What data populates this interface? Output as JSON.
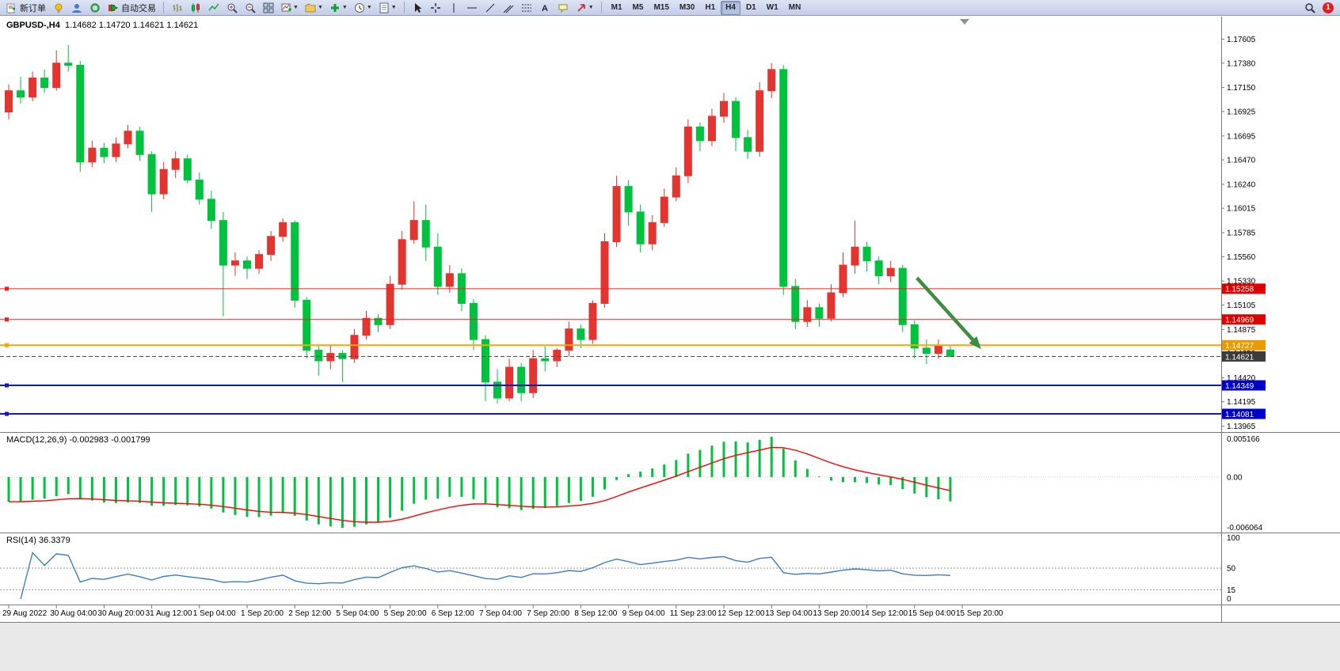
{
  "toolbar": {
    "new_order_label": "新订单",
    "auto_trading_label": "自动交易",
    "timeframes": [
      "M1",
      "M5",
      "M15",
      "M30",
      "H1",
      "H4",
      "D1",
      "W1",
      "MN"
    ],
    "active_timeframe": "H4",
    "notification_badge": "1"
  },
  "chart": {
    "symbol_period": "GBPUSD-,H4",
    "ohlc_text": "1.14682 1.14720 1.14621 1.14621",
    "macd_title": "MACD(12,26,9)",
    "macd_values": "-0.002983 -0.001799",
    "rsi_title": "RSI(14)",
    "rsi_value": "36.3379"
  },
  "chart_data": {
    "type": "candlestick",
    "symbol": "GBPUSD-",
    "timeframe": "H4",
    "bull_color": "#e23530",
    "bear_color": "#00c23e",
    "price_range": {
      "top": 1.1778,
      "bottom": 1.1394
    },
    "price_axis_ticks": [
      "1.17605",
      "1.17380",
      "1.17150",
      "1.16925",
      "1.16695",
      "1.16470",
      "1.16240",
      "1.16015",
      "1.15785",
      "1.15560",
      "1.15330",
      "1.15105",
      "1.14875",
      "1.14650",
      "1.14420",
      "1.14195",
      "1.13965"
    ],
    "time_labels": [
      "29 Aug 2022",
      "30 Aug 04:00",
      "30 Aug 20:00",
      "31 Aug 12:00",
      "1 Sep 04:00",
      "1 Sep 20:00",
      "2 Sep 12:00",
      "5 Sep 04:00",
      "5 Sep 20:00",
      "6 Sep 12:00",
      "7 Sep 04:00",
      "7 Sep 20:00",
      "8 Sep 12:00",
      "9 Sep 04:00",
      "11 Sep 23:00",
      "12 Sep 12:00",
      "13 Sep 04:00",
      "13 Sep 20:00",
      "14 Sep 12:00",
      "15 Sep 04:00",
      "15 Sep 20:00"
    ],
    "candles": [
      [
        1.1692,
        1.1718,
        1.1685,
        1.1712
      ],
      [
        1.1712,
        1.1725,
        1.17,
        1.1706
      ],
      [
        1.1706,
        1.173,
        1.1702,
        1.1724
      ],
      [
        1.1724,
        1.1732,
        1.171,
        1.1715
      ],
      [
        1.1715,
        1.175,
        1.1712,
        1.1738
      ],
      [
        1.1738,
        1.1755,
        1.173,
        1.1736
      ],
      [
        1.1736,
        1.174,
        1.1636,
        1.1645
      ],
      [
        1.1645,
        1.1665,
        1.164,
        1.1658
      ],
      [
        1.1658,
        1.1663,
        1.1644,
        1.165
      ],
      [
        1.165,
        1.1668,
        1.1645,
        1.1662
      ],
      [
        1.1662,
        1.168,
        1.1658,
        1.1674
      ],
      [
        1.1674,
        1.1678,
        1.1646,
        1.1652
      ],
      [
        1.1652,
        1.1655,
        1.1598,
        1.1615
      ],
      [
        1.1615,
        1.1645,
        1.161,
        1.1638
      ],
      [
        1.1638,
        1.1655,
        1.163,
        1.1648
      ],
      [
        1.1648,
        1.1652,
        1.1625,
        1.1628
      ],
      [
        1.1628,
        1.1635,
        1.1605,
        1.161
      ],
      [
        1.161,
        1.1618,
        1.1582,
        1.159
      ],
      [
        1.159,
        1.1598,
        1.15,
        1.1548
      ],
      [
        1.1548,
        1.156,
        1.1538,
        1.1552
      ],
      [
        1.1552,
        1.1556,
        1.1535,
        1.1545
      ],
      [
        1.1545,
        1.1562,
        1.154,
        1.1558
      ],
      [
        1.1558,
        1.158,
        1.1552,
        1.1575
      ],
      [
        1.1575,
        1.1592,
        1.157,
        1.1588
      ],
      [
        1.1588,
        1.159,
        1.1508,
        1.1515
      ],
      [
        1.1515,
        1.1518,
        1.146,
        1.1468
      ],
      [
        1.1468,
        1.1472,
        1.1444,
        1.1458
      ],
      [
        1.1458,
        1.1472,
        1.145,
        1.1465
      ],
      [
        1.1465,
        1.1468,
        1.1438,
        1.146
      ],
      [
        1.146,
        1.1488,
        1.1456,
        1.1482
      ],
      [
        1.1482,
        1.1505,
        1.1478,
        1.1498
      ],
      [
        1.1498,
        1.1502,
        1.1485,
        1.1492
      ],
      [
        1.1492,
        1.1538,
        1.1488,
        1.153
      ],
      [
        1.153,
        1.158,
        1.1525,
        1.1572
      ],
      [
        1.1572,
        1.1608,
        1.1568,
        1.159
      ],
      [
        1.159,
        1.1605,
        1.1552,
        1.1565
      ],
      [
        1.1565,
        1.1578,
        1.152,
        1.1528
      ],
      [
        1.1528,
        1.1548,
        1.1522,
        1.154
      ],
      [
        1.154,
        1.1545,
        1.1505,
        1.1512
      ],
      [
        1.1512,
        1.1516,
        1.1468,
        1.1478
      ],
      [
        1.1478,
        1.1482,
        1.142,
        1.1438
      ],
      [
        1.1438,
        1.145,
        1.1418,
        1.1423
      ],
      [
        1.1423,
        1.146,
        1.142,
        1.1452
      ],
      [
        1.1452,
        1.1456,
        1.142,
        1.1428
      ],
      [
        1.1428,
        1.1468,
        1.1423,
        1.146
      ],
      [
        1.146,
        1.1472,
        1.1448,
        1.1458
      ],
      [
        1.1458,
        1.147,
        1.1452,
        1.1468
      ],
      [
        1.1468,
        1.1495,
        1.1462,
        1.1488
      ],
      [
        1.1488,
        1.1492,
        1.147,
        1.1478
      ],
      [
        1.1478,
        1.1515,
        1.1474,
        1.1512
      ],
      [
        1.1512,
        1.1578,
        1.1508,
        1.157
      ],
      [
        1.157,
        1.1632,
        1.1565,
        1.1622
      ],
      [
        1.1622,
        1.1628,
        1.1585,
        1.1598
      ],
      [
        1.1598,
        1.1605,
        1.156,
        1.1568
      ],
      [
        1.1568,
        1.1595,
        1.1562,
        1.1588
      ],
      [
        1.1588,
        1.162,
        1.1584,
        1.1612
      ],
      [
        1.1612,
        1.164,
        1.1608,
        1.1632
      ],
      [
        1.1632,
        1.1685,
        1.1625,
        1.1678
      ],
      [
        1.1678,
        1.1682,
        1.1655,
        1.1665
      ],
      [
        1.1665,
        1.1695,
        1.166,
        1.1688
      ],
      [
        1.1688,
        1.171,
        1.1682,
        1.1702
      ],
      [
        1.1702,
        1.1706,
        1.1655,
        1.1668
      ],
      [
        1.1668,
        1.1675,
        1.1648,
        1.1655
      ],
      [
        1.1655,
        1.172,
        1.165,
        1.1712
      ],
      [
        1.1712,
        1.1738,
        1.1705,
        1.1732
      ],
      [
        1.1732,
        1.1736,
        1.152,
        1.1528
      ],
      [
        1.1528,
        1.1535,
        1.1488,
        1.1495
      ],
      [
        1.1495,
        1.1515,
        1.149,
        1.1508
      ],
      [
        1.1508,
        1.1512,
        1.149,
        1.1498
      ],
      [
        1.1498,
        1.153,
        1.1495,
        1.1522
      ],
      [
        1.1522,
        1.156,
        1.1518,
        1.1548
      ],
      [
        1.1548,
        1.159,
        1.154,
        1.1565
      ],
      [
        1.1565,
        1.157,
        1.1542,
        1.1552
      ],
      [
        1.1552,
        1.1556,
        1.153,
        1.1538
      ],
      [
        1.1538,
        1.1552,
        1.1532,
        1.1545
      ],
      [
        1.1545,
        1.1548,
        1.1485,
        1.1492
      ],
      [
        1.1492,
        1.1496,
        1.146,
        1.147
      ],
      [
        1.147,
        1.1478,
        1.1455,
        1.1465
      ],
      [
        1.1465,
        1.1478,
        1.146,
        1.1472
      ],
      [
        1.14682,
        1.1472,
        1.14621,
        1.14621
      ]
    ],
    "levels": [
      {
        "price": 1.15258,
        "label": "1.15258",
        "line_color": "#ff1a1a",
        "badge_color": "#e00000",
        "style": "solid",
        "width": 1
      },
      {
        "price": 1.14969,
        "label": "1.14969",
        "line_color": "#ff1a1a",
        "badge_color": "#e00000",
        "style": "solid",
        "width": 1
      },
      {
        "price": 1.14727,
        "label": "1.14727",
        "line_color": "#ffa400",
        "badge_color": "#e89c00",
        "style": "solid",
        "width": 2
      },
      {
        "price": 1.14621,
        "label": "1.14621",
        "line_color": "#4a4a4a",
        "badge_color": "#3c3c3c",
        "style": "dashed",
        "width": 1,
        "current": true
      },
      {
        "price": 1.14349,
        "label": "1.14349",
        "line_color": "#1414cc",
        "badge_color": "#0000cc",
        "style": "solid",
        "width": 2
      },
      {
        "price": 1.14081,
        "label": "1.14081",
        "line_color": "#1414cc",
        "badge_color": "#0000cc",
        "style": "solid",
        "width": 2
      }
    ],
    "arrow": {
      "from_bar": 76.2,
      "from_price": 1.1536,
      "to_bar": 81.6,
      "to_price": 1.1469,
      "color": "#3e8e41"
    },
    "macd": {
      "title": "MACD(12,26,9)",
      "fast": 12,
      "slow": 26,
      "signal_period": 9,
      "current_macd": -0.002983,
      "current_signal": -0.001799,
      "axis_labels": [
        "0.005166",
        "0.00",
        "-0.006064"
      ],
      "histogram_color": "#00c23e",
      "signal_color": "#ff0000"
    },
    "rsi": {
      "title": "RSI(14)",
      "period": 14,
      "current": 36.3379,
      "axis_labels": [
        "100",
        "50",
        "15",
        "0"
      ],
      "levels": [
        50,
        15
      ],
      "line_color": "#3f7cc0"
    }
  }
}
